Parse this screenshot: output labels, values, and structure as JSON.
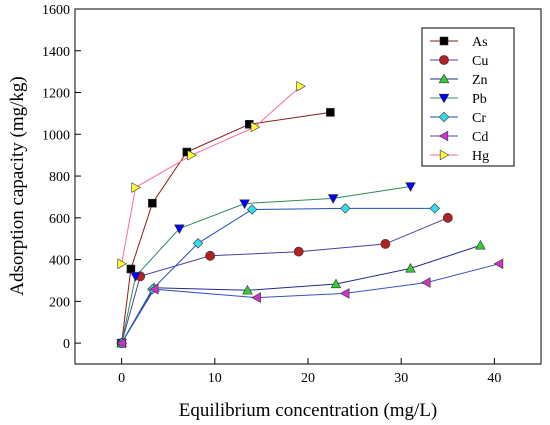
{
  "chart_data": {
    "type": "line",
    "xlabel": "Equilibrium concentration (mg/L)",
    "ylabel": "Adsorption capacity (mg/kg)",
    "xlim": [
      -5,
      45
    ],
    "ylim": [
      -100,
      1600
    ],
    "x_ticks": [
      0,
      10,
      20,
      30,
      40
    ],
    "y_ticks": [
      0,
      200,
      400,
      600,
      800,
      1000,
      1200,
      1400,
      1600
    ],
    "x_tick_labels": [
      "0",
      "10",
      "20",
      "30",
      "40"
    ],
    "y_tick_labels": [
      "0",
      "200",
      "400",
      "600",
      "800",
      "1000",
      "1200",
      "1400",
      "1600"
    ],
    "grid": false,
    "legend_position": "top-right",
    "series": [
      {
        "name": "As",
        "color": "#8b1a1a",
        "marker_color": "#000000",
        "marker": "square",
        "x": [
          0,
          1,
          3.3,
          7,
          13.7,
          22.4
        ],
        "y": [
          0,
          355,
          670,
          915,
          1048,
          1105
        ]
      },
      {
        "name": "Cu",
        "color": "#4a3fa8",
        "marker_color": "#b22222",
        "marker": "circle",
        "x": [
          0,
          2,
          9.5,
          19,
          28.3,
          35
        ],
        "y": [
          0,
          320,
          418,
          438,
          475,
          600
        ]
      },
      {
        "name": "Zn",
        "color": "#1f2b8c",
        "marker_color": "#33cc33",
        "marker": "triangle-up",
        "x": [
          0,
          3.5,
          13.5,
          23,
          31,
          38.5
        ],
        "y": [
          0,
          265,
          253,
          283,
          358,
          468
        ]
      },
      {
        "name": "Pb",
        "color": "#2e8b57",
        "marker_color": "#0000ff",
        "marker": "triangle-down",
        "x": [
          0,
          1.5,
          6.2,
          13.2,
          22.7,
          31
        ],
        "y": [
          0,
          320,
          548,
          668,
          693,
          750
        ]
      },
      {
        "name": "Cr",
        "color": "#1e50b4",
        "marker_color": "#33ddee",
        "marker": "diamond",
        "x": [
          0,
          3.3,
          8.2,
          14,
          24,
          33.6
        ],
        "y": [
          0,
          258,
          478,
          640,
          645,
          645
        ]
      },
      {
        "name": "Cd",
        "color": "#3355bb",
        "marker_color": "#cc33cc",
        "marker": "triangle-left",
        "x": [
          0,
          3.5,
          14.5,
          24,
          32.7,
          40.5
        ],
        "y": [
          0,
          258,
          218,
          238,
          290,
          380
        ]
      },
      {
        "name": "Hg",
        "color": "#ff6699",
        "marker_color": "#ffff33",
        "marker": "triangle-right",
        "x": [
          0,
          1.5,
          7.5,
          14.3,
          19.2
        ],
        "y": [
          380,
          745,
          900,
          1035,
          1230
        ]
      }
    ]
  }
}
